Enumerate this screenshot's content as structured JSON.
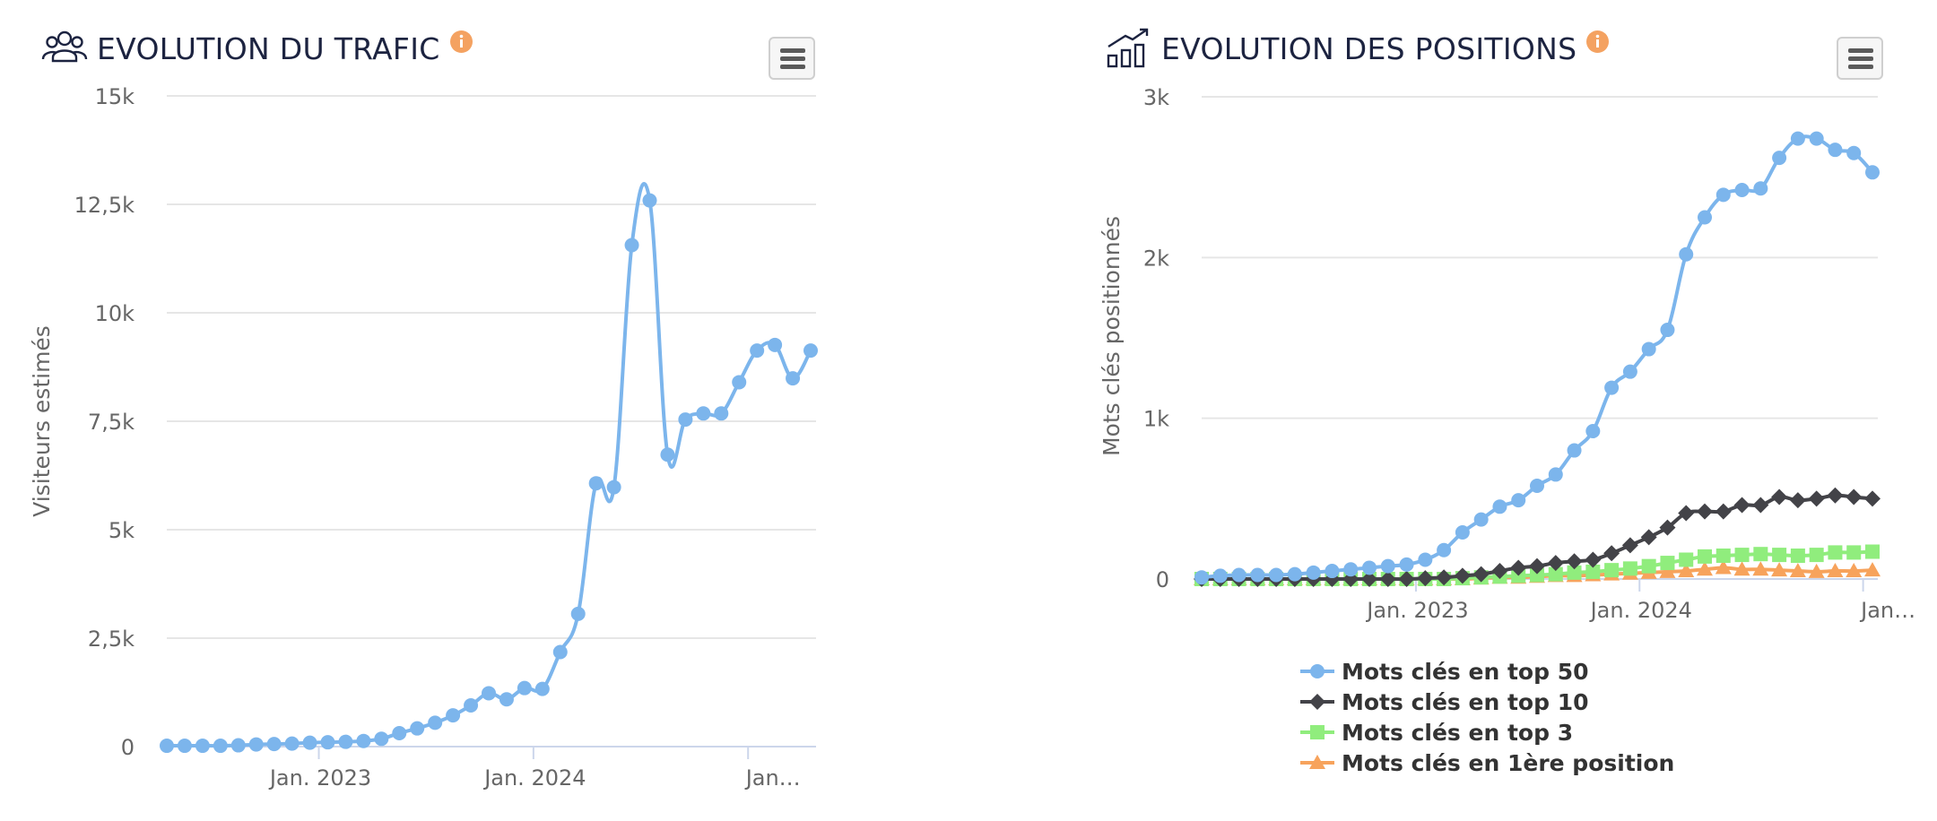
{
  "charts": [
    {
      "title": "EVOLUTION DU TRAFIC",
      "icon": "users-icon",
      "info_icon": "info-icon",
      "menu_icon": "hamburger-menu-icon",
      "chart_data": {
        "type": "line",
        "title": "EVOLUTION DU TRAFIC",
        "ylabel": "Visiteurs estimés",
        "xlabel": "",
        "ylim": [
          0,
          15000
        ],
        "y_ticks": [
          0,
          2500,
          5000,
          7500,
          10000,
          12500,
          15000
        ],
        "y_tick_labels": [
          "0",
          "2,5k",
          "5k",
          "7,5k",
          "10k",
          "12,5k",
          "15k"
        ],
        "x_tick_labels": [
          "Jan. 2023",
          "Jan. 2024",
          "Jan…"
        ],
        "x_tick_months": [
          8.5,
          20.5,
          32.5
        ],
        "grid": true,
        "legend": "none",
        "series": [
          {
            "color": "#7cb5ec",
            "marker": "circle",
            "values": [
              20,
              20,
              20,
              20,
              30,
              50,
              60,
              70,
              90,
              100,
              110,
              130,
              180,
              310,
              420,
              550,
              720,
              950,
              1230,
              1090,
              1350,
              1330,
              2180,
              3060,
              6070,
              5980,
              11560,
              12590,
              6730,
              7540,
              7680,
              7680,
              8400,
              9130,
              9260,
              8490,
              9130
            ]
          }
        ]
      }
    },
    {
      "title": "EVOLUTION DES POSITIONS",
      "icon": "rising-chart-icon",
      "info_icon": "info-icon",
      "menu_icon": "hamburger-menu-icon",
      "chart_data": {
        "type": "line",
        "title": "EVOLUTION DES POSITIONS",
        "ylabel": "Mots clés positionnés",
        "xlabel": "",
        "ylim": [
          0,
          3000
        ],
        "y_ticks": [
          0,
          1000,
          2000,
          3000
        ],
        "y_tick_labels": [
          "0",
          "1k",
          "2k",
          "3k"
        ],
        "x_tick_labels": [
          "Jan. 2023",
          "Jan. 2024",
          "Jan…"
        ],
        "x_tick_months": [
          11.5,
          23.5,
          35.5
        ],
        "grid": true,
        "legend": "bottom",
        "series": [
          {
            "name": "Mots clés en top 50",
            "color": "#7cb5ec",
            "marker": "circle",
            "values": [
              10,
              20,
              25,
              25,
              25,
              30,
              40,
              50,
              60,
              70,
              80,
              90,
              120,
              180,
              290,
              370,
              450,
              490,
              580,
              650,
              800,
              920,
              1190,
              1290,
              1430,
              1550,
              2020,
              2250,
              2390,
              2420,
              2430,
              2620,
              2740,
              2740,
              2670,
              2650,
              2530
            ]
          },
          {
            "name": "Mots clés en top 10",
            "color": "#434348",
            "marker": "diamond",
            "values": [
              0,
              0,
              0,
              0,
              0,
              0,
              0,
              0,
              0,
              0,
              0,
              0,
              5,
              10,
              20,
              30,
              50,
              70,
              80,
              100,
              110,
              120,
              160,
              210,
              260,
              320,
              410,
              420,
              420,
              460,
              460,
              510,
              490,
              500,
              520,
              510,
              500
            ]
          },
          {
            "name": "Mots clés en top 3",
            "color": "#90ed7d",
            "marker": "square",
            "values": [
              0,
              0,
              0,
              0,
              0,
              0,
              0,
              0,
              0,
              0,
              0,
              0,
              0,
              0,
              5,
              10,
              15,
              20,
              25,
              30,
              40,
              45,
              55,
              65,
              80,
              100,
              120,
              140,
              145,
              150,
              155,
              150,
              145,
              150,
              165,
              165,
              170
            ]
          },
          {
            "name": "Mots clés en 1ère position",
            "color": "#f7a35c",
            "marker": "triangle",
            "values": [
              0,
              0,
              0,
              0,
              0,
              0,
              0,
              0,
              0,
              0,
              0,
              0,
              0,
              0,
              0,
              5,
              10,
              10,
              15,
              20,
              20,
              25,
              30,
              35,
              40,
              45,
              50,
              60,
              70,
              60,
              60,
              55,
              50,
              45,
              50,
              50,
              55
            ]
          }
        ]
      }
    }
  ]
}
